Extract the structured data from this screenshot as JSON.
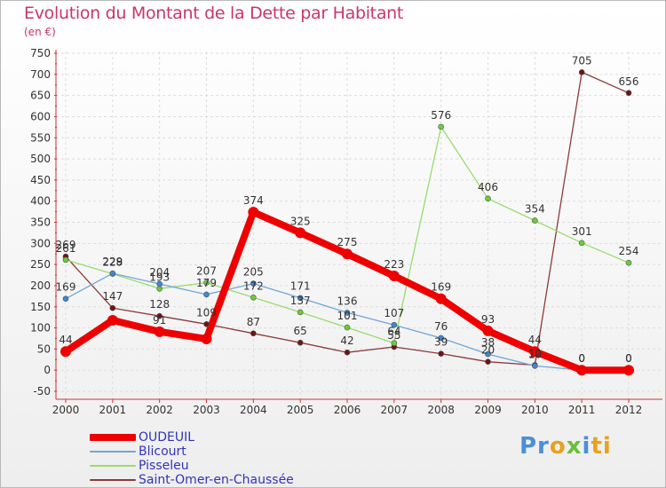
{
  "chart_data": {
    "type": "line",
    "title": "Evolution du Montant de la Dette par Habitant",
    "unit": "(en €)",
    "x": [
      "2000",
      "2001",
      "2002",
      "2003",
      "2004",
      "2005",
      "2006",
      "2007",
      "2008",
      "2009",
      "2010",
      "2011",
      "2012"
    ],
    "ylim": [
      -50,
      750
    ],
    "yticks": [
      -50,
      0,
      50,
      100,
      150,
      200,
      250,
      300,
      350,
      400,
      450,
      500,
      550,
      600,
      650,
      700,
      750
    ],
    "grid": true,
    "legend_position": "bottom-left",
    "series": [
      {
        "name": "OUDEUIL",
        "color": "#ee0000",
        "point_color": "#ee0000",
        "values": [
          44,
          118,
          91,
          74,
          374,
          325,
          275,
          223,
          169,
          93,
          44,
          0,
          0
        ],
        "labels": [
          "44",
          "",
          "91",
          "",
          "374",
          "325",
          "275",
          "223",
          "169",
          "93",
          "44",
          "0",
          "0"
        ]
      },
      {
        "name": "Blicourt",
        "color": "#6fa6d8",
        "point_color": "#3f86cf",
        "values": [
          169,
          229,
          204,
          179,
          205,
          171,
          136,
          107,
          76,
          38,
          10,
          0,
          0
        ],
        "labels": [
          "169",
          "229",
          "204",
          "179",
          "205",
          "171",
          "136",
          "107",
          "76",
          "38",
          "10",
          "0",
          "0"
        ]
      },
      {
        "name": "Pisseleu",
        "color": "#98dc6e",
        "point_color": "#6bcc38",
        "values": [
          261,
          228,
          193,
          207,
          172,
          137,
          101,
          64,
          576,
          406,
          354,
          301,
          254
        ],
        "labels": [
          "261",
          "228",
          "193",
          "207",
          "172",
          "137",
          "101",
          "64",
          "576",
          "406",
          "354",
          "301",
          "254"
        ]
      },
      {
        "name": "Saint-Omer-en-Chaussée",
        "color": "#8c3a3a",
        "point_color": "#6e1414",
        "values": [
          269,
          147,
          128,
          109,
          87,
          65,
          42,
          55,
          39,
          20,
          12,
          705,
          656
        ],
        "labels": [
          "269",
          "147",
          "128",
          "109",
          "87",
          "65",
          "42",
          "55",
          "39",
          "20",
          "12",
          "705",
          "656"
        ]
      }
    ]
  },
  "branding": {
    "logo_parts": [
      "Pr",
      "o",
      "x",
      "i",
      "ti"
    ]
  }
}
